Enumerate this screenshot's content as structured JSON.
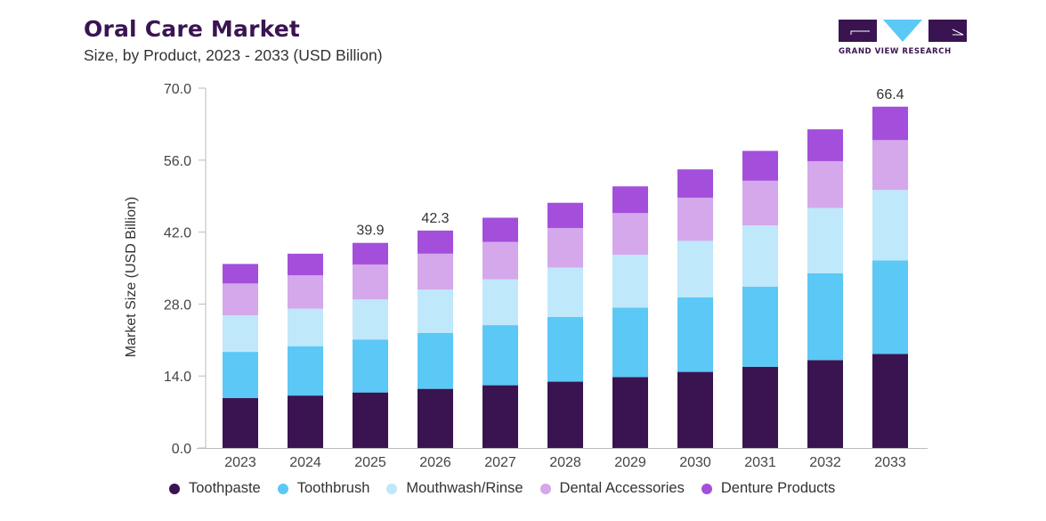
{
  "header": {
    "title": "Oral Care Market",
    "subtitle": "Size, by Product, 2023 - 2033 (USD Billion)",
    "logo_text": "GRAND VIEW RESEARCH",
    "logo_icon": "grand-view-research-logo"
  },
  "colors": {
    "brand": "#3a1451",
    "logo_triangle": "#5bc8f5",
    "axis": "#bbbbbb"
  },
  "chart_data": {
    "type": "bar",
    "stacked": true,
    "title": "Oral Care Market",
    "subtitle": "Size, by Product, 2023 - 2033 (USD Billion)",
    "xlabel": "",
    "ylabel": "Market Size (USD Billion)",
    "ylim": [
      0,
      70
    ],
    "yticks": [
      0.0,
      14.0,
      28.0,
      42.0,
      56.0,
      70.0
    ],
    "ytick_labels": [
      "0.0",
      "14.0",
      "28.0",
      "42.0",
      "56.0",
      "70.0"
    ],
    "grid": false,
    "legend_position": "bottom",
    "categories": [
      "2023",
      "2024",
      "2025",
      "2026",
      "2027",
      "2028",
      "2029",
      "2030",
      "2031",
      "2032",
      "2033"
    ],
    "series": [
      {
        "name": "Toothpaste",
        "color": "#3a1451",
        "values": [
          9.7,
          10.2,
          10.8,
          11.5,
          12.2,
          12.9,
          13.8,
          14.8,
          15.8,
          17.1,
          18.3
        ]
      },
      {
        "name": "Toothbrush",
        "color": "#5bc8f5",
        "values": [
          9.0,
          9.6,
          10.3,
          10.9,
          11.7,
          12.6,
          13.5,
          14.5,
          15.6,
          16.9,
          18.2
        ]
      },
      {
        "name": "Mouthwash/Rinse",
        "color": "#bfe8fb",
        "values": [
          7.1,
          7.3,
          7.8,
          8.4,
          8.9,
          9.6,
          10.3,
          11.0,
          11.9,
          12.7,
          13.7
        ]
      },
      {
        "name": "Dental Accessories",
        "color": "#d4a8ea",
        "values": [
          6.2,
          6.5,
          6.8,
          7.0,
          7.3,
          7.7,
          8.1,
          8.4,
          8.7,
          9.1,
          9.7
        ]
      },
      {
        "name": "Denture Products",
        "color": "#a44fdb",
        "values": [
          3.8,
          4.2,
          4.2,
          4.5,
          4.7,
          4.9,
          5.2,
          5.5,
          5.8,
          6.2,
          6.5
        ]
      }
    ],
    "totals": [
      35.8,
      37.8,
      39.9,
      42.3,
      44.8,
      47.7,
      50.9,
      54.2,
      57.8,
      62.0,
      66.4
    ],
    "annotations": [
      {
        "category": "2025",
        "text": "39.9"
      },
      {
        "category": "2026",
        "text": "42.3"
      },
      {
        "category": "2033",
        "text": "66.4"
      }
    ]
  }
}
